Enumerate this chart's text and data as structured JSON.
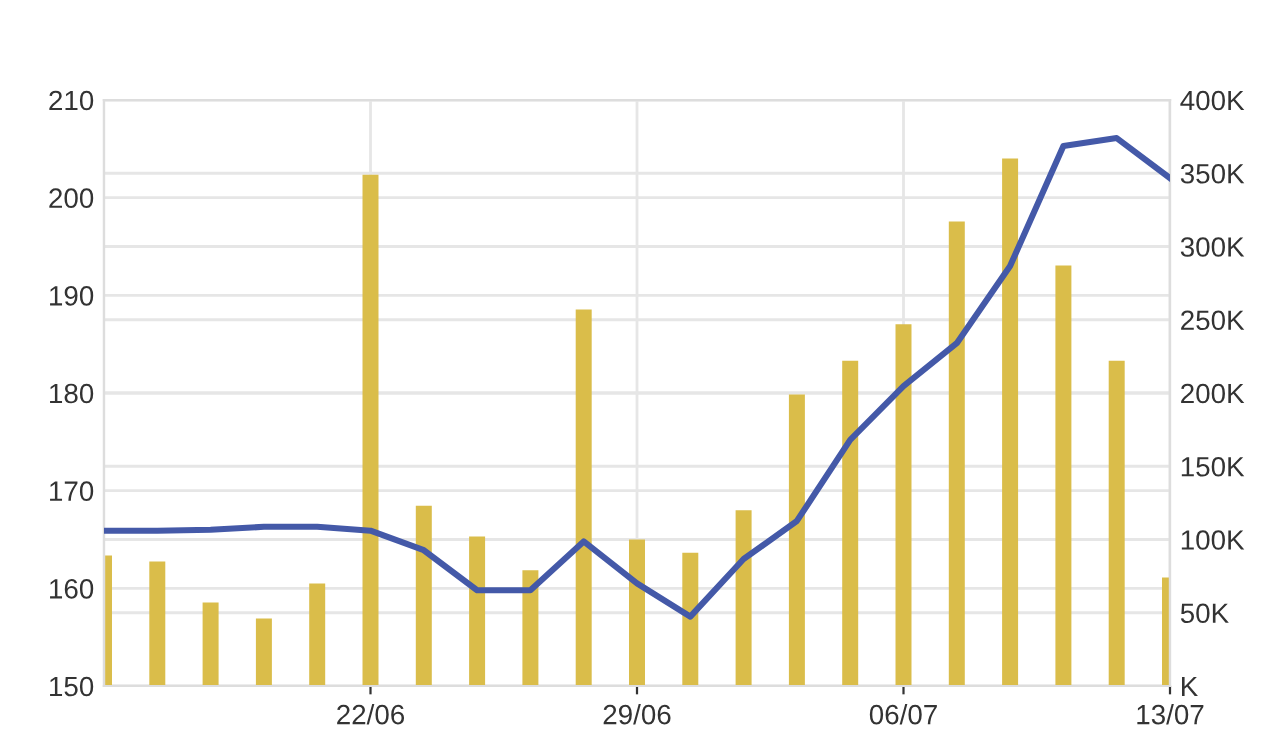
{
  "chart_data": {
    "type": "line",
    "categories": [
      null,
      null,
      null,
      null,
      null,
      "22/06",
      null,
      null,
      null,
      null,
      "29/06",
      null,
      null,
      null,
      null,
      "06/07",
      null,
      null,
      null,
      null,
      "13/07"
    ],
    "series": [
      {
        "type": "bar",
        "axis": "y2",
        "color": "#dabd4a",
        "values": [
          89000,
          85000,
          57000,
          46000,
          70000,
          349000,
          123000,
          102000,
          79000,
          257000,
          100000,
          91000,
          120000,
          199000,
          222000,
          247000,
          317000,
          360000,
          287000,
          222000,
          74000
        ]
      },
      {
        "color": "#4459a8",
        "values": [
          165.9,
          165.9,
          166.0,
          166.3,
          166.3,
          165.9,
          163.9,
          159.8,
          159.8,
          164.8,
          160.5,
          157.1,
          163.0,
          166.9,
          175.2,
          180.7,
          185.1,
          193.0,
          205.3,
          206.1,
          202.0
        ]
      }
    ],
    "ylim": [
      150,
      210
    ],
    "yticks": [
      150,
      160,
      170,
      180,
      190,
      200,
      210
    ],
    "y2lim": [
      0,
      400000
    ],
    "y2ticks": [
      {
        "value": 0,
        "label": "K"
      },
      {
        "value": 50000,
        "label": "50K"
      },
      {
        "value": 100000,
        "label": "100K"
      },
      {
        "value": 150000,
        "label": "150K"
      },
      {
        "value": 200000,
        "label": "200K"
      },
      {
        "value": 250000,
        "label": "250K"
      },
      {
        "value": 300000,
        "label": "300K"
      },
      {
        "value": 350000,
        "label": "350K"
      },
      {
        "value": 400000,
        "label": "400K"
      }
    ],
    "grid": true,
    "marker": "none",
    "line_style": "solid"
  }
}
